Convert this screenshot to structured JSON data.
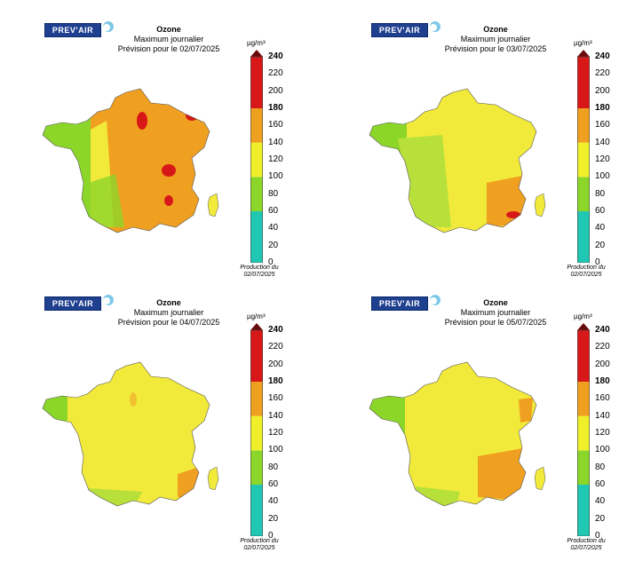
{
  "colorbar": {
    "unit": "µg/m³",
    "ticks": [
      "240",
      "220",
      "200",
      "180",
      "160",
      "140",
      "120",
      "100",
      "80",
      "60",
      "40",
      "20",
      "0"
    ],
    "bold_ticks": [
      "240",
      "180"
    ],
    "bands": [
      {
        "from": 0,
        "to": 60,
        "color": "#20c8b4"
      },
      {
        "from": 60,
        "to": 100,
        "color": "#8cd62a"
      },
      {
        "from": 100,
        "to": 140,
        "color": "#f0f02a"
      },
      {
        "from": 140,
        "to": 180,
        "color": "#f0a020"
      },
      {
        "from": 180,
        "to": 240,
        "color": "#d81818"
      }
    ]
  },
  "colors": {
    "logo_blue": "#1f3f8f",
    "sea": "#ffffff",
    "green": "#8cd62a",
    "yellow": "#f2ea3a",
    "orange": "#f0a020",
    "red": "#d81818"
  },
  "panels": [
    {
      "logo": "PREV'AIR",
      "title": "Ozone",
      "subtitle": "Maximum journalier",
      "forecast": "Prévision pour le 02/07/2025",
      "production_label": "Production du",
      "production_date": "02/07/2025",
      "dominant_level": "orange"
    },
    {
      "logo": "PREV'AIR",
      "title": "Ozone",
      "subtitle": "Maximum journalier",
      "forecast": "Prévision pour le 03/07/2025",
      "production_label": "Production du",
      "production_date": "02/07/2025",
      "dominant_level": "yellow"
    },
    {
      "logo": "PREV'AIR",
      "title": "Ozone",
      "subtitle": "Maximum journalier",
      "forecast": "Prévision pour le 04/07/2025",
      "production_label": "Production du",
      "production_date": "02/07/2025",
      "dominant_level": "yellow"
    },
    {
      "logo": "PREV'AIR",
      "title": "Ozone",
      "subtitle": "Maximum journalier",
      "forecast": "Prévision pour le 05/07/2025",
      "production_label": "Production du",
      "production_date": "02/07/2025",
      "dominant_level": "yellow"
    }
  ]
}
